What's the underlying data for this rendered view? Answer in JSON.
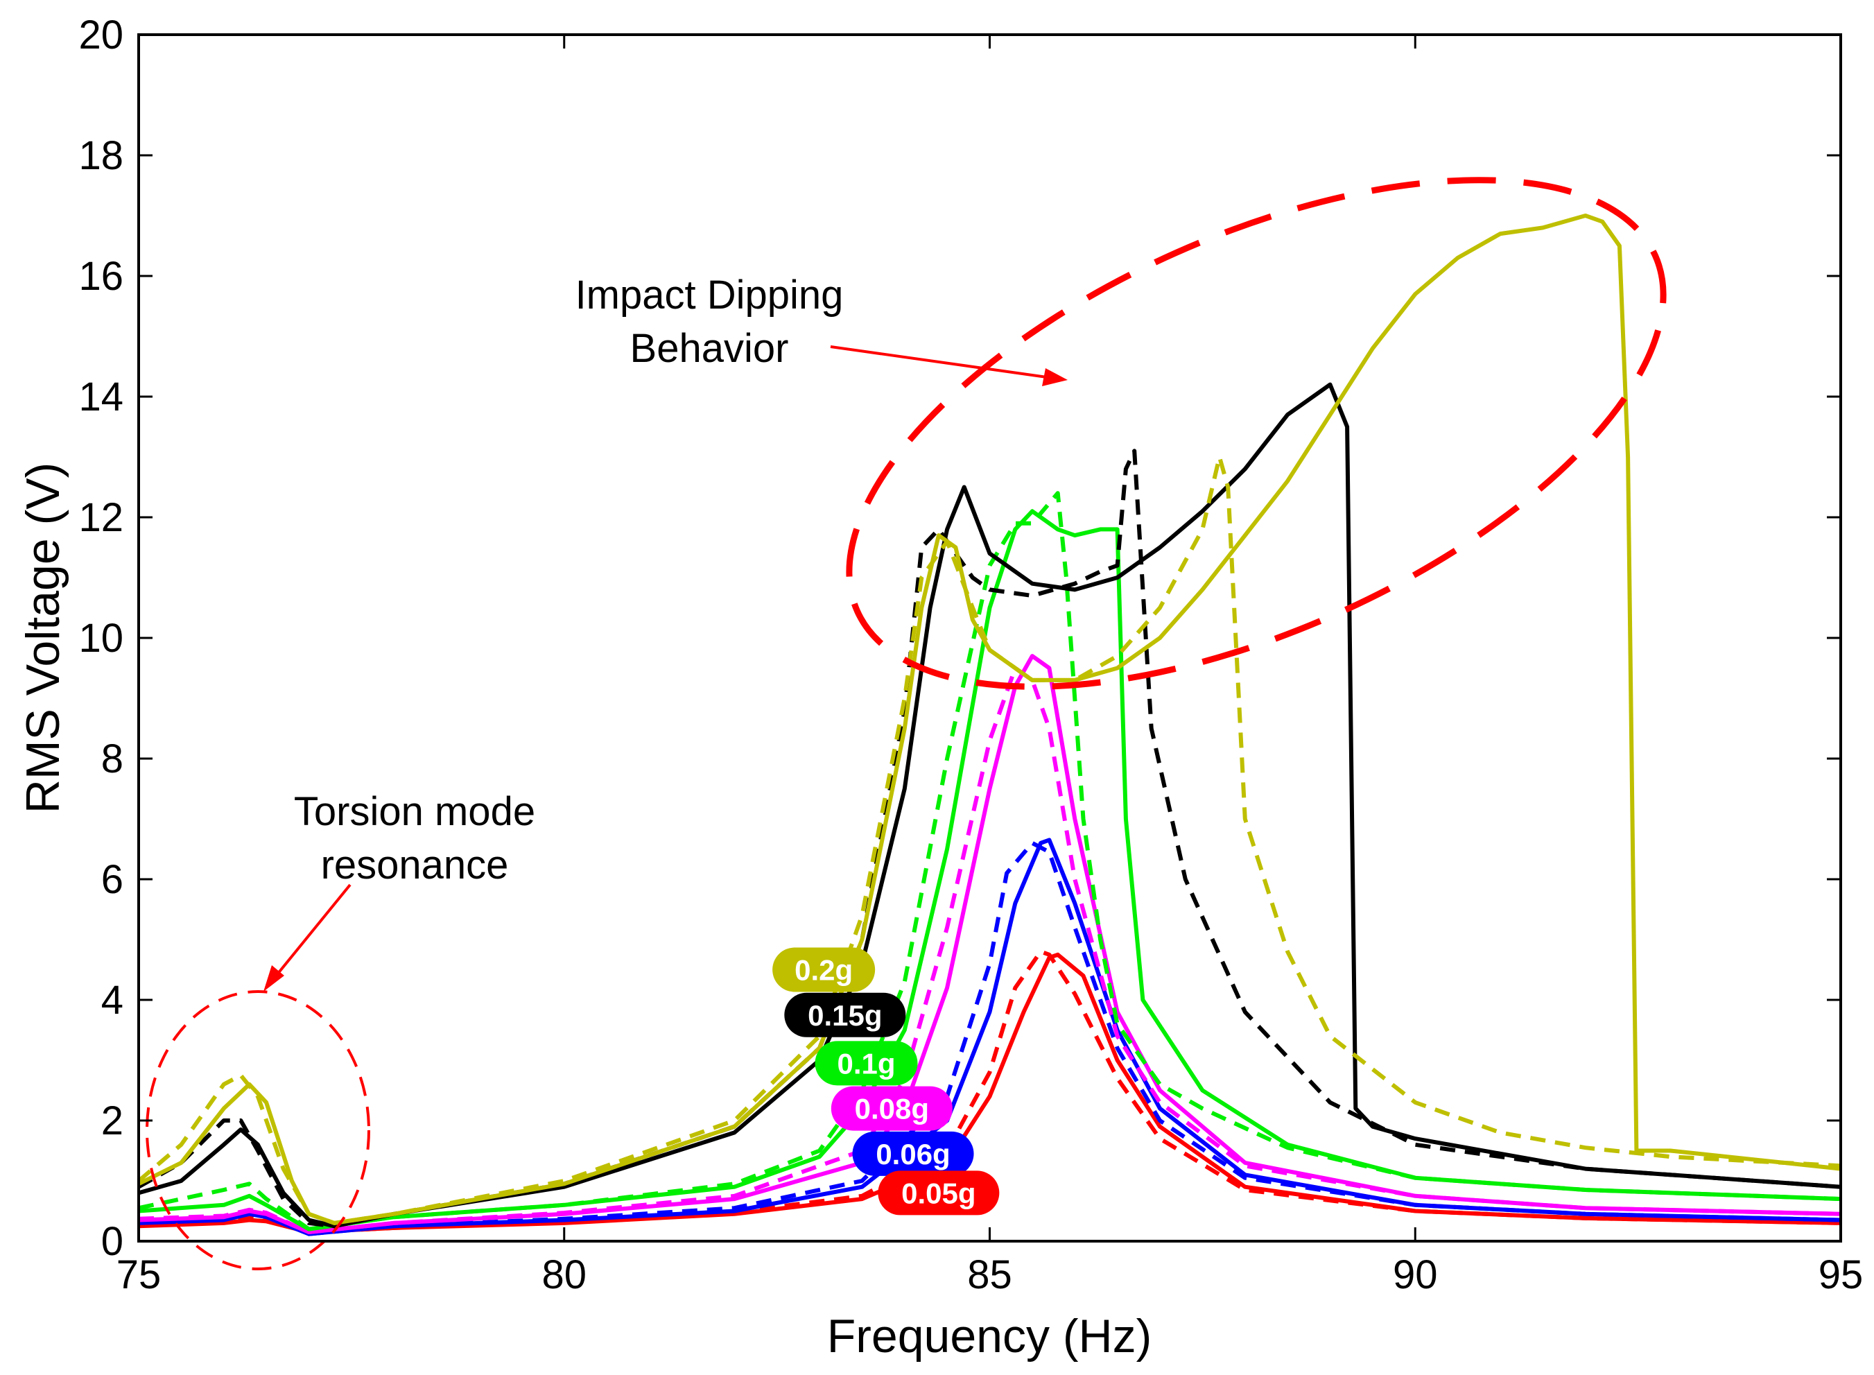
{
  "chart_data": {
    "type": "line",
    "title": "",
    "xlabel": "Frequency (Hz)",
    "ylabel": "RMS Voltage (V)",
    "xlim": [
      75,
      95
    ],
    "ylim": [
      0,
      20
    ],
    "xticks": [
      75,
      80,
      85,
      90,
      95
    ],
    "yticks": [
      0,
      2,
      4,
      6,
      8,
      10,
      12,
      14,
      16,
      18,
      20
    ],
    "grid": false,
    "annotations": {
      "impact_line1": "Impact Dipping",
      "impact_line2": "Behavior",
      "torsion_line1": "Torsion mode",
      "torsion_line2": "resonance"
    },
    "series": [
      {
        "name": "0.05g",
        "color": "#ff0000",
        "style": "solid",
        "x": [
          75,
          76,
          76.3,
          76.5,
          77,
          78,
          80,
          82,
          83.5,
          84.5,
          85,
          85.4,
          85.7,
          85.8,
          86.1,
          86.5,
          87,
          88,
          90,
          92,
          95
        ],
        "y": [
          0.25,
          0.3,
          0.35,
          0.33,
          0.15,
          0.22,
          0.3,
          0.45,
          0.7,
          1.3,
          2.4,
          3.8,
          4.7,
          4.75,
          4.4,
          3.0,
          1.9,
          0.9,
          0.5,
          0.38,
          0.3
        ]
      },
      {
        "name": "0.05g down",
        "color": "#ff0000",
        "style": "dashed",
        "x": [
          75,
          76,
          76.3,
          76.5,
          77,
          78,
          80,
          82,
          83.5,
          84.5,
          85,
          85.3,
          85.6,
          85.7,
          86,
          86.5,
          87,
          88,
          90,
          92,
          95
        ],
        "y": [
          0.28,
          0.32,
          0.38,
          0.35,
          0.15,
          0.22,
          0.32,
          0.48,
          0.75,
          1.5,
          2.8,
          4.2,
          4.8,
          4.75,
          4.1,
          2.7,
          1.7,
          0.85,
          0.5,
          0.38,
          0.3
        ]
      },
      {
        "name": "0.06g",
        "color": "#0000ff",
        "style": "solid",
        "x": [
          75,
          76,
          76.3,
          76.5,
          77,
          78,
          80,
          82,
          83.5,
          84.5,
          85,
          85.3,
          85.6,
          85.7,
          86,
          86.5,
          87,
          88,
          90,
          92,
          95
        ],
        "y": [
          0.3,
          0.35,
          0.45,
          0.4,
          0.12,
          0.25,
          0.35,
          0.5,
          0.9,
          2.0,
          3.8,
          5.6,
          6.6,
          6.65,
          5.6,
          3.5,
          2.2,
          1.1,
          0.6,
          0.45,
          0.35
        ]
      },
      {
        "name": "0.06g down",
        "color": "#0000ff",
        "style": "dashed",
        "x": [
          75,
          76,
          76.3,
          76.5,
          77,
          78,
          80,
          82,
          83.5,
          84.5,
          85,
          85.2,
          85.5,
          85.7,
          86,
          86.5,
          87,
          88,
          90,
          92,
          95
        ],
        "y": [
          0.32,
          0.38,
          0.48,
          0.42,
          0.12,
          0.25,
          0.37,
          0.55,
          1.0,
          2.4,
          4.6,
          6.1,
          6.6,
          6.45,
          5.2,
          3.2,
          2.0,
          1.05,
          0.6,
          0.45,
          0.35
        ]
      },
      {
        "name": "0.08g",
        "color": "#ff00ff",
        "style": "solid",
        "x": [
          75,
          76,
          76.3,
          76.5,
          77,
          78,
          80,
          82,
          83.5,
          84,
          84.5,
          85,
          85.3,
          85.5,
          85.7,
          86,
          86.5,
          87,
          88,
          90,
          92,
          95
        ],
        "y": [
          0.35,
          0.4,
          0.5,
          0.45,
          0.15,
          0.3,
          0.45,
          0.7,
          1.3,
          2.2,
          4.2,
          7.5,
          9.2,
          9.7,
          9.5,
          7.0,
          3.8,
          2.5,
          1.3,
          0.75,
          0.55,
          0.45
        ]
      },
      {
        "name": "0.08g down",
        "color": "#ff00ff",
        "style": "dashed",
        "x": [
          75,
          76,
          76.3,
          76.5,
          77,
          78,
          80,
          82,
          83.5,
          84,
          84.5,
          85,
          85.3,
          85.5,
          85.7,
          86,
          86.5,
          87,
          88,
          90,
          92,
          95
        ],
        "y": [
          0.37,
          0.42,
          0.52,
          0.47,
          0.15,
          0.3,
          0.47,
          0.75,
          1.5,
          2.7,
          5.2,
          8.3,
          9.5,
          9.3,
          8.5,
          6.0,
          3.4,
          2.3,
          1.25,
          0.75,
          0.55,
          0.45
        ]
      },
      {
        "name": "0.1g",
        "color": "#00ee00",
        "style": "solid",
        "x": [
          75,
          76,
          76.3,
          76.5,
          77,
          78,
          80,
          82,
          83,
          83.5,
          84,
          84.5,
          85,
          85.3,
          85.5,
          85.8,
          86,
          86.3,
          86.5,
          86.6,
          86.8,
          87.5,
          88.5,
          90,
          92,
          95
        ],
        "y": [
          0.5,
          0.6,
          0.75,
          0.6,
          0.2,
          0.4,
          0.6,
          0.9,
          1.4,
          2.2,
          3.5,
          6.5,
          10.5,
          11.8,
          12.1,
          11.8,
          11.7,
          11.8,
          11.8,
          7.0,
          4.0,
          2.5,
          1.6,
          1.05,
          0.85,
          0.7
        ]
      },
      {
        "name": "0.1g down",
        "color": "#00ee00",
        "style": "dashed",
        "x": [
          75,
          76,
          76.3,
          76.5,
          77,
          78,
          80,
          82,
          83,
          83.5,
          84,
          84.5,
          85,
          85.3,
          85.5,
          85.8,
          85.9,
          86.1,
          86.3,
          86.5,
          87,
          87.5,
          88.5,
          90,
          92,
          95
        ],
        "y": [
          0.55,
          0.85,
          0.95,
          0.7,
          0.2,
          0.4,
          0.6,
          0.95,
          1.5,
          2.5,
          4.3,
          8.0,
          11.2,
          11.9,
          11.9,
          12.4,
          11.0,
          7.0,
          5.0,
          3.6,
          2.6,
          2.2,
          1.55,
          1.05,
          0.85,
          0.7
        ]
      },
      {
        "name": "0.15g",
        "color": "#000000",
        "style": "solid",
        "x": [
          75,
          75.5,
          76,
          76.2,
          76.4,
          76.7,
          77,
          77.3,
          78,
          80,
          82,
          83,
          83.5,
          84,
          84.3,
          84.5,
          84.7,
          85,
          85.5,
          86,
          86.5,
          87,
          87.5,
          88,
          88.5,
          89,
          89.2,
          89.3,
          89.5,
          90,
          92,
          95
        ],
        "y": [
          0.8,
          1.0,
          1.6,
          1.85,
          1.6,
          0.8,
          0.35,
          0.25,
          0.45,
          0.9,
          1.8,
          3.0,
          4.6,
          7.5,
          10.5,
          11.8,
          12.5,
          11.4,
          10.9,
          10.8,
          11.0,
          11.5,
          12.1,
          12.8,
          13.7,
          14.2,
          13.5,
          2.2,
          1.9,
          1.7,
          1.2,
          0.9
        ]
      },
      {
        "name": "0.15g down",
        "color": "#000000",
        "style": "dashed",
        "x": [
          75,
          75.5,
          76,
          76.2,
          76.4,
          76.7,
          77,
          77.3,
          78,
          80,
          82,
          83,
          83.5,
          84,
          84.2,
          84.4,
          84.8,
          85,
          85.5,
          86,
          86.3,
          86.5,
          86.6,
          86.7,
          86.9,
          87.3,
          88,
          89,
          90,
          92,
          95
        ],
        "y": [
          0.9,
          1.3,
          2.0,
          2.0,
          1.5,
          0.7,
          0.3,
          0.25,
          0.45,
          0.95,
          1.9,
          3.2,
          5.0,
          8.8,
          11.5,
          11.8,
          11.0,
          10.8,
          10.7,
          10.9,
          11.1,
          11.2,
          12.8,
          13.1,
          8.5,
          6.0,
          3.8,
          2.3,
          1.6,
          1.2,
          0.9
        ]
      },
      {
        "name": "0.2g",
        "color": "#bfbf00",
        "style": "solid",
        "x": [
          75,
          75.5,
          76,
          76.3,
          76.5,
          76.8,
          77,
          77.3,
          78,
          80,
          82,
          83,
          83.5,
          84,
          84.2,
          84.4,
          84.6,
          84.8,
          85,
          85.5,
          86,
          86.5,
          87,
          87.5,
          88,
          88.5,
          89,
          89.5,
          90,
          90.5,
          91,
          91.5,
          92,
          92.2,
          92.4,
          92.5,
          92.6,
          93,
          95
        ],
        "y": [
          0.95,
          1.3,
          2.2,
          2.6,
          2.3,
          1.0,
          0.45,
          0.3,
          0.45,
          0.95,
          1.9,
          3.2,
          5.0,
          8.5,
          10.5,
          11.7,
          11.5,
          10.3,
          9.8,
          9.3,
          9.3,
          9.5,
          10.0,
          10.8,
          11.7,
          12.6,
          13.7,
          14.8,
          15.7,
          16.3,
          16.7,
          16.8,
          17.0,
          16.9,
          16.5,
          13.0,
          1.5,
          1.5,
          1.2
        ]
      },
      {
        "name": "0.2g down",
        "color": "#bfbf00",
        "style": "dashed",
        "x": [
          75,
          75.5,
          76,
          76.2,
          76.4,
          76.7,
          77,
          77.3,
          78,
          80,
          82,
          83,
          83.5,
          84,
          84.2,
          84.5,
          84.8,
          85,
          85.5,
          86,
          86.5,
          87,
          87.5,
          87.7,
          87.8,
          88,
          88.5,
          89,
          90,
          91,
          92,
          93,
          95
        ],
        "y": [
          1.0,
          1.6,
          2.6,
          2.75,
          2.4,
          1.2,
          0.45,
          0.3,
          0.45,
          1.0,
          2.0,
          3.4,
          5.4,
          9.0,
          11.0,
          11.6,
          10.5,
          9.8,
          9.3,
          9.3,
          9.7,
          10.5,
          11.8,
          13.0,
          12.5,
          7.0,
          4.8,
          3.4,
          2.3,
          1.8,
          1.55,
          1.4,
          1.25
        ]
      }
    ],
    "badges": [
      {
        "label": "0.2g",
        "color": "#bfbf00",
        "x": 83.05,
        "y": 4.5
      },
      {
        "label": "0.15g",
        "color": "#000000",
        "x": 83.3,
        "y": 3.75
      },
      {
        "label": "0.1g",
        "color": "#00ee00",
        "x": 83.55,
        "y": 2.95
      },
      {
        "label": "0.08g",
        "color": "#ff00ff",
        "x": 83.85,
        "y": 2.2
      },
      {
        "label": "0.06g",
        "color": "#0000ff",
        "x": 84.1,
        "y": 1.45
      },
      {
        "label": "0.05g",
        "color": "#ff0000",
        "x": 84.4,
        "y": 0.8
      }
    ]
  }
}
